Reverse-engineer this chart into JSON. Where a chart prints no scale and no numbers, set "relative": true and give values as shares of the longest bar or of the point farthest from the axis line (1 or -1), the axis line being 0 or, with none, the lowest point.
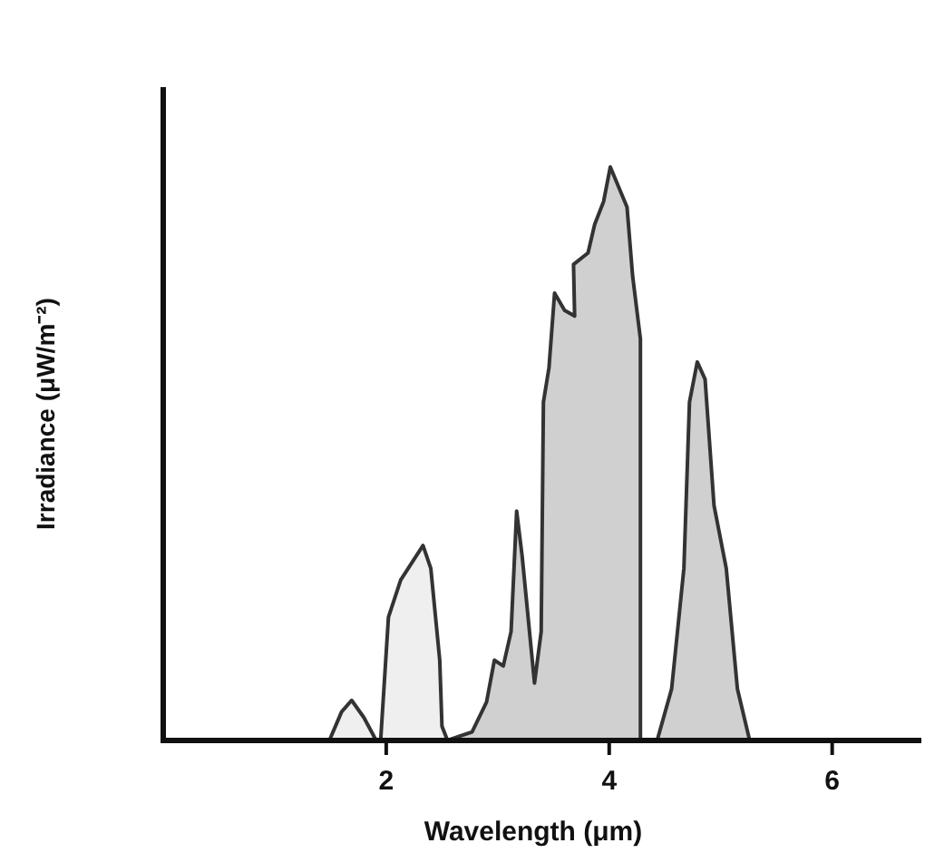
{
  "chart_data": {
    "type": "area",
    "relative": true,
    "xlabel": "Wavelength (μm)",
    "ylabel": "Irradiance (μW/m⁻²)",
    "xlim": [
      0,
      6.8
    ],
    "xticks": [
      2,
      4,
      6
    ],
    "series": [
      {
        "color": "#efefef",
        "x": [
          1.49,
          1.6,
          1.69,
          1.8,
          1.91
        ],
        "values": [
          0,
          0.05,
          0.07,
          0.04,
          0
        ]
      },
      {
        "color": "#efefef",
        "x": [
          1.95,
          2.02,
          2.13,
          2.33,
          2.4,
          2.48,
          2.5,
          2.55
        ],
        "values": [
          0,
          0.215,
          0.28,
          0.34,
          0.3,
          0.14,
          0.025,
          0
        ]
      },
      {
        "color": "#d0d0d0",
        "x": [
          2.55,
          2.77,
          2.9,
          2.97,
          3.05,
          3.12,
          3.17,
          3.22,
          3.33,
          3.39,
          3.41,
          3.46,
          3.51,
          3.6,
          3.69,
          3.68,
          3.81,
          3.87,
          3.95,
          4.01,
          4.16,
          4.21,
          4.28,
          4.28
        ],
        "values": [
          0,
          0.015,
          0.067,
          0.14,
          0.13,
          0.19,
          0.4,
          0.32,
          0.1,
          0.19,
          0.59,
          0.65,
          0.78,
          0.75,
          0.74,
          0.83,
          0.85,
          0.9,
          0.94,
          1,
          0.93,
          0.81,
          0.7,
          0
        ]
      },
      {
        "color": "#d0d0d0",
        "x": [
          4.43,
          4.56,
          4.67,
          4.72,
          4.79,
          4.86,
          4.94,
          5.05,
          5.15,
          5.26
        ],
        "values": [
          0,
          0.09,
          0.3,
          0.59,
          0.66,
          0.63,
          0.41,
          0.3,
          0.09,
          0
        ]
      }
    ]
  }
}
